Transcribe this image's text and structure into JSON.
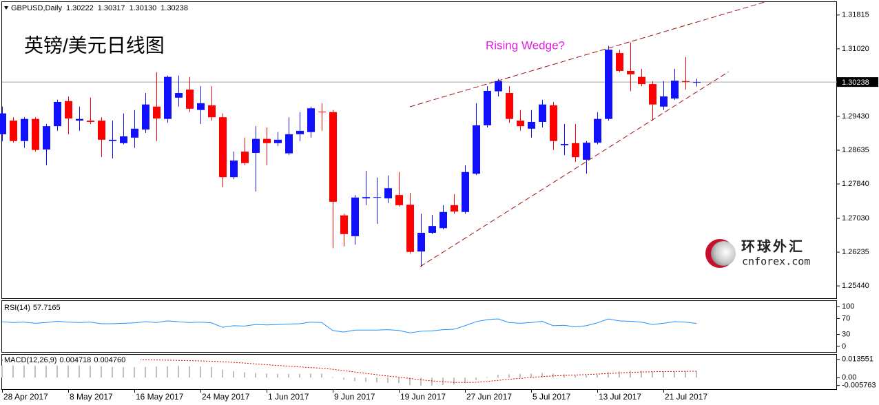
{
  "chart_data": {
    "type": "candlestick",
    "header": {
      "symbol": "GBPUSD,Daily",
      "ohlc_labels": [
        "1.30222",
        "1.30317",
        "1.30130",
        "1.30238"
      ]
    },
    "title": "英镑/美元日线图",
    "annotation": "Rising Wedge?",
    "watermark": {
      "cn": "环球外汇",
      "en": "cnforex.com"
    },
    "categories": [
      "28 Apr 2017",
      null,
      null,
      null,
      null,
      null,
      "8 May 2017",
      null,
      null,
      null,
      null,
      null,
      "16 May 2017",
      null,
      null,
      null,
      null,
      null,
      "24 May 2017",
      null,
      null,
      null,
      null,
      null,
      "1 Jun 2017",
      null,
      null,
      null,
      null,
      null,
      "9 Jun 2017",
      null,
      null,
      null,
      null,
      null,
      "19 Jun 2017",
      null,
      null,
      null,
      null,
      null,
      "27 Jun 2017",
      null,
      null,
      null,
      null,
      null,
      "5 Jul 2017",
      null,
      null,
      null,
      null,
      null,
      "13 Jul 2017",
      null,
      null,
      null,
      null,
      null,
      "21 Jul 2017",
      null,
      null,
      null
    ],
    "open": [
      1.2901,
      1.2933,
      1.2885,
      1.2937,
      1.2865,
      1.292,
      1.2979,
      1.2933,
      1.2933,
      1.2933,
      1.2885,
      1.288,
      1.2893,
      1.2912,
      1.2966,
      1.2937,
      1.2987,
      1.3006,
      1.2958,
      1.2969,
      1.2941,
      1.28,
      1.286,
      1.2857,
      1.289,
      1.288,
      1.2856,
      1.2901,
      1.2906,
      1.2954,
      1.2953,
      1.271,
      1.2661,
      1.275,
      1.2752,
      1.275,
      1.2758,
      1.2735,
      1.2625,
      1.2669,
      1.268,
      1.2734,
      1.2718,
      1.2808,
      1.2922,
      1.3002,
      1.2998,
      1.2933,
      1.2914,
      1.293,
      1.2969,
      1.2875,
      1.288,
      1.2841,
      1.2881,
      1.2937,
      1.3092,
      1.305,
      1.3036,
      1.3019,
      1.2966,
      1.2985,
      1.3026,
      1.30222
    ],
    "high": [
      1.2966,
      1.2941,
      1.2941,
      1.2941,
      1.2925,
      1.2982,
      1.299,
      1.2966,
      1.2987,
      1.2941,
      1.2933,
      1.295,
      1.2958,
      1.2998,
      1.3047,
      1.3039,
      1.3039,
      1.3036,
      1.3014,
      1.3014,
      1.295,
      1.286,
      1.2893,
      1.292,
      1.2917,
      1.2906,
      1.2941,
      1.2953,
      1.2966,
      1.2974,
      1.2958,
      1.2714,
      1.2758,
      1.2815,
      1.2799,
      1.2804,
      1.2812,
      1.2763,
      1.2714,
      1.2711,
      1.2734,
      1.276,
      1.2828,
      1.2974,
      1.3014,
      1.3031,
      1.3014,
      1.2958,
      1.2958,
      1.2982,
      1.2977,
      1.2925,
      1.2925,
      1.2885,
      1.2953,
      1.3109,
      1.31,
      1.3117,
      1.3055,
      1.3026,
      1.3026,
      1.3055,
      1.3083,
      1.30317
    ],
    "low": [
      1.2885,
      1.2881,
      1.2869,
      1.286,
      1.2828,
      1.2909,
      1.2901,
      1.2909,
      1.2925,
      1.2847,
      1.2844,
      1.2877,
      1.2869,
      1.2904,
      1.2885,
      1.2928,
      1.2966,
      1.2953,
      1.2925,
      1.2933,
      1.2776,
      1.2795,
      1.2828,
      1.2766,
      1.2828,
      1.2873,
      1.2852,
      1.2885,
      1.2893,
      1.2909,
      1.2633,
      1.2637,
      1.2641,
      1.2734,
      1.269,
      1.2739,
      1.2731,
      1.262,
      1.2589,
      1.2666,
      1.2677,
      1.2714,
      1.2714,
      1.2805,
      1.2917,
      1.299,
      1.2928,
      1.2909,
      1.2893,
      1.2917,
      1.2864,
      1.2852,
      1.2836,
      1.2808,
      1.2877,
      1.2933,
      1.3047,
      1.3002,
      1.3014,
      1.2933,
      1.2958,
      1.2982,
      1.3006,
      1.3013
    ],
    "close": [
      1.295,
      1.2885,
      1.2937,
      1.2864,
      1.292,
      1.2977,
      1.2938,
      1.2937,
      1.293,
      1.2888,
      1.2888,
      1.2896,
      1.2914,
      1.2971,
      1.2938,
      1.3036,
      1.2998,
      1.2961,
      1.2974,
      1.2941,
      1.28,
      1.2839,
      1.2833,
      1.289,
      1.288,
      1.2888,
      1.2901,
      1.2909,
      1.2962,
      1.2953,
      1.2742,
      1.2666,
      1.2752,
      1.2753,
      1.2753,
      1.2774,
      1.2734,
      1.2624,
      1.2669,
      1.2685,
      1.2718,
      1.2719,
      1.2812,
      1.2922,
      1.3003,
      1.3026,
      1.2937,
      1.292,
      1.293,
      1.2971,
      1.2885,
      1.2878,
      1.2847,
      1.2881,
      1.2937,
      1.31,
      1.305,
      1.3042,
      1.3019,
      1.2971,
      1.299,
      1.3027,
      1.3024,
      1.30238
    ],
    "colors": {
      "up": "#1010ff",
      "down": "#ff0000"
    },
    "ylim": [
      1.2515,
      1.3212
    ],
    "yticks": [
      1.31815,
      {
        "value": 1.3102,
        "label": "1.31020"
      },
      {
        "value": 1.2943,
        "label": "1.29430"
      },
      1.28635,
      {
        "value": 1.2784,
        "label": "1.27840"
      },
      {
        "value": 1.2703,
        "label": "1.27030"
      },
      1.26235,
      {
        "value": 1.2544,
        "label": "1.25440"
      }
    ],
    "current_price": {
      "value": 1.30238,
      "label": "1.30238"
    },
    "rsi": {
      "label": "RSI(14)",
      "color": "#1e90ff",
      "values": [
        62,
        60,
        61,
        58,
        60,
        63,
        61,
        60,
        61,
        57,
        57,
        58,
        59,
        62,
        60,
        64,
        62,
        60,
        61,
        59,
        48,
        52,
        51,
        55,
        54,
        55,
        56,
        57,
        61,
        60,
        40,
        36,
        41,
        41,
        41,
        42,
        40,
        34,
        38,
        39,
        42,
        43,
        52,
        62,
        67,
        69,
        60,
        58,
        60,
        63,
        52,
        53,
        49,
        52,
        59,
        69,
        64,
        63,
        61,
        55,
        58,
        62,
        61,
        57.7165
      ],
      "ylim": [
        -14,
        114
      ],
      "yticks": [
        100,
        70,
        30,
        0
      ]
    },
    "macd": {
      "label": "MACD(12,26,9)",
      "bar_color": "#c0c0c0",
      "signal_color": "#e00000",
      "values": [
        0.009,
        0.009,
        0.009,
        0.0088,
        0.0088,
        0.009,
        0.009,
        0.009,
        0.0088,
        0.0085,
        0.008,
        0.0078,
        0.0078,
        0.008,
        0.0082,
        0.0085,
        0.0088,
        0.0085,
        0.0083,
        0.008,
        0.006,
        0.0048,
        0.004,
        0.0035,
        0.003,
        0.0028,
        0.0028,
        0.0028,
        0.003,
        0.003,
        0.0005,
        -0.0015,
        -0.0025,
        -0.003,
        -0.0035,
        -0.0038,
        -0.004,
        -0.0055,
        -0.0058,
        -0.0058,
        -0.0055,
        -0.0052,
        -0.004,
        -0.0018,
        0.0005,
        0.0022,
        0.0025,
        0.0028,
        0.003,
        0.0035,
        0.003,
        0.0025,
        0.002,
        0.0018,
        0.0022,
        0.0042,
        0.0048,
        0.0052,
        0.0052,
        0.0048,
        0.0046,
        0.0048,
        0.0048,
        0.004718
      ],
      "signal": [
        0.013,
        0.0131,
        0.0132,
        0.0132,
        0.0133,
        0.0133,
        0.0134,
        0.0134,
        0.0134,
        0.0135,
        0.0135,
        0.0134,
        0.0133,
        0.0132,
        0.0131,
        0.013,
        0.0128,
        0.0126,
        0.0124,
        0.0122,
        0.0118,
        0.0113,
        0.0108,
        0.0102,
        0.0096,
        0.009,
        0.0085,
        0.008,
        0.0075,
        0.007,
        0.0062,
        0.0052,
        0.0042,
        0.0032,
        0.0022,
        0.0012,
        0.0004,
        -0.0006,
        -0.0016,
        -0.0024,
        -0.003,
        -0.0035,
        -0.0036,
        -0.0034,
        -0.0028,
        -0.002,
        -0.0012,
        -0.0005,
        0.0002,
        0.0008,
        0.0013,
        0.0017,
        0.002,
        0.0023,
        0.0027,
        0.0031,
        0.0035,
        0.0039,
        0.0042,
        0.0044,
        0.0045,
        0.0046,
        0.0047,
        0.00476
      ],
      "signal_label": "0.004760",
      "ylim": [
        -0.0085,
        0.017
      ],
      "yticks": [
        0.013551,
        {
          "value": 0,
          "label": "0.00"
        },
        -0.005763
      ]
    }
  }
}
